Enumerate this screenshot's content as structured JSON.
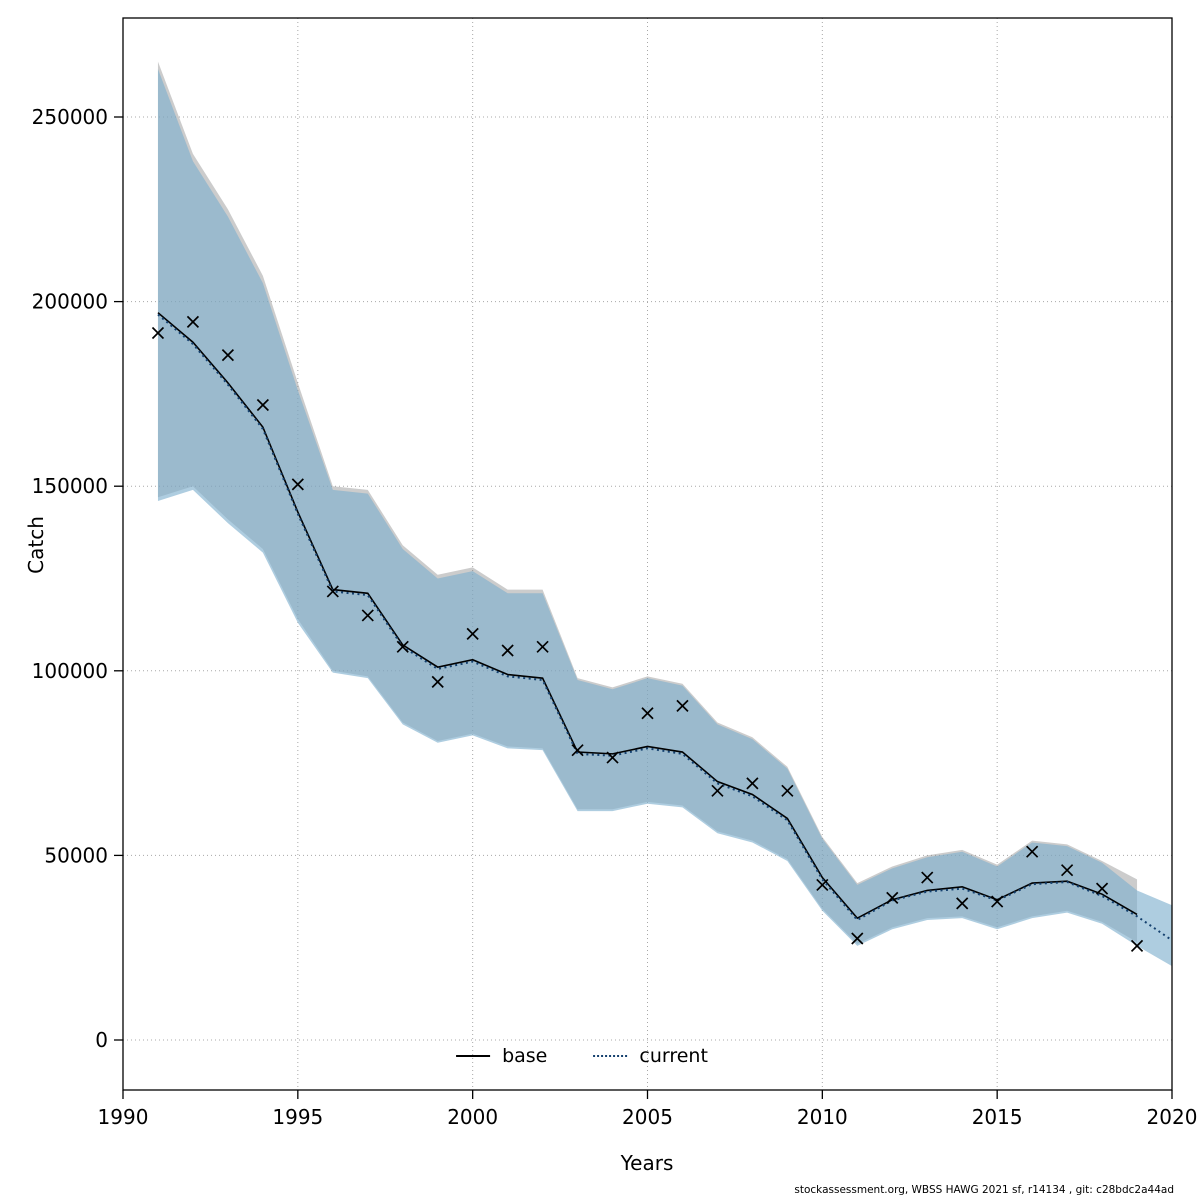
{
  "chart": {
    "xlabel": "Years",
    "ylabel": "Catch",
    "footer": "stockassessment.org, WBSS HAWG 2021 sf, r14134 , git: c28bdc2a44ad",
    "legend": {
      "base_label": "base",
      "current_label": "current"
    }
  },
  "colors": {
    "base_line": "#000000",
    "current_line": "#14406e",
    "base_band": "rgba(128,128,128,0.40)",
    "current_band": "rgba(125,175,205,0.62)",
    "grid": "#a8a8a8",
    "marker": "#000000"
  },
  "chart_data": {
    "type": "line",
    "title": "",
    "xlabel": "Years",
    "ylabel": "Catch",
    "xlim": [
      1990,
      2020
    ],
    "ylim": [
      0,
      265000
    ],
    "x_ticks": [
      1990,
      1995,
      2000,
      2005,
      2010,
      2015,
      2020
    ],
    "y_ticks": [
      0,
      50000,
      100000,
      150000,
      200000,
      250000
    ],
    "grid": true,
    "legend_position": "bottom-center-inside",
    "series": [
      {
        "name": "base",
        "type": "line",
        "line_style": "solid",
        "x": [
          1991,
          1992,
          1993,
          1994,
          1995,
          1996,
          1997,
          1998,
          1999,
          2000,
          2001,
          2002,
          2003,
          2004,
          2005,
          2006,
          2007,
          2008,
          2009,
          2010,
          2011,
          2012,
          2013,
          2014,
          2015,
          2016,
          2017,
          2018,
          2019
        ],
        "y": [
          197000,
          189000,
          178000,
          166000,
          143000,
          122000,
          121000,
          107000,
          101000,
          103000,
          99000,
          98000,
          78000,
          77500,
          79500,
          78000,
          70000,
          66500,
          60000,
          44000,
          33000,
          38000,
          40500,
          41500,
          38000,
          42500,
          43000,
          39500,
          34000
        ],
        "band_hi": [
          265000,
          240000,
          225000,
          207000,
          178000,
          150000,
          149000,
          134000,
          126000,
          128000,
          122000,
          122000,
          98000,
          95500,
          98500,
          96500,
          86000,
          82000,
          74000,
          55000,
          42500,
          47000,
          50000,
          51500,
          47500,
          54000,
          53000,
          48500,
          43500
        ],
        "band_lo": [
          147000,
          150000,
          141000,
          133000,
          114000,
          100000,
          98500,
          86000,
          81000,
          83000,
          79500,
          79000,
          62500,
          62500,
          64500,
          63500,
          56500,
          54000,
          49000,
          35500,
          26000,
          30500,
          33000,
          33500,
          30500,
          33500,
          35000,
          32000,
          26500
        ]
      },
      {
        "name": "current",
        "type": "line",
        "line_style": "dotted",
        "x": [
          1991,
          1992,
          1993,
          1994,
          1995,
          1996,
          1997,
          1998,
          1999,
          2000,
          2001,
          2002,
          2003,
          2004,
          2005,
          2006,
          2007,
          2008,
          2009,
          2010,
          2011,
          2012,
          2013,
          2014,
          2015,
          2016,
          2017,
          2018,
          2019,
          2020
        ],
        "y": [
          196500,
          188500,
          177500,
          165500,
          142500,
          121500,
          120500,
          106500,
          100500,
          102500,
          98500,
          97500,
          77500,
          77000,
          79000,
          77500,
          69500,
          66000,
          59500,
          43500,
          32500,
          37800,
          40200,
          41000,
          37800,
          42200,
          42800,
          39000,
          33500,
          27000
        ],
        "band_hi": [
          263000,
          238000,
          223000,
          205000,
          176000,
          149000,
          148000,
          133000,
          125000,
          127000,
          121000,
          121000,
          97500,
          95000,
          98000,
          96000,
          85500,
          81500,
          73500,
          54500,
          42000,
          46500,
          49500,
          51000,
          47000,
          53500,
          52500,
          48000,
          40500,
          36500
        ],
        "band_lo": [
          146000,
          149000,
          140000,
          132000,
          113000,
          99500,
          98000,
          85500,
          80500,
          82500,
          79000,
          78500,
          62000,
          62000,
          64000,
          63000,
          56000,
          53500,
          48500,
          35000,
          25500,
          30000,
          32500,
          33000,
          30000,
          33000,
          34500,
          31500,
          25500,
          20000
        ]
      },
      {
        "name": "observations",
        "type": "scatter",
        "marker": "x",
        "x": [
          1991,
          1992,
          1993,
          1994,
          1995,
          1996,
          1997,
          1998,
          1999,
          2000,
          2001,
          2002,
          2003,
          2004,
          2005,
          2006,
          2007,
          2008,
          2009,
          2010,
          2011,
          2012,
          2013,
          2014,
          2015,
          2016,
          2017,
          2018,
          2019
        ],
        "y": [
          191500,
          194500,
          185500,
          172000,
          150500,
          121500,
          115000,
          106500,
          97000,
          110000,
          105500,
          106500,
          78500,
          76500,
          88500,
          90500,
          67500,
          69500,
          67500,
          42000,
          27500,
          38500,
          44000,
          37000,
          37500,
          51000,
          46000,
          41000,
          25500
        ]
      }
    ]
  }
}
